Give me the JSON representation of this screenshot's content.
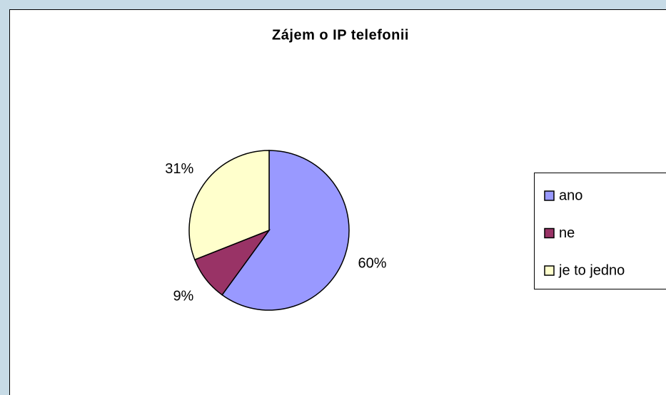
{
  "chart_data": {
    "type": "pie",
    "title": "Zájem o IP telefonii",
    "categories": [
      "ano",
      "ne",
      "je to jedno"
    ],
    "values": [
      60,
      9,
      31
    ],
    "value_labels": [
      "60%",
      "9%",
      "31%"
    ],
    "colors": [
      "#9999ff",
      "#993366",
      "#ffffcc"
    ],
    "legend": "right"
  }
}
